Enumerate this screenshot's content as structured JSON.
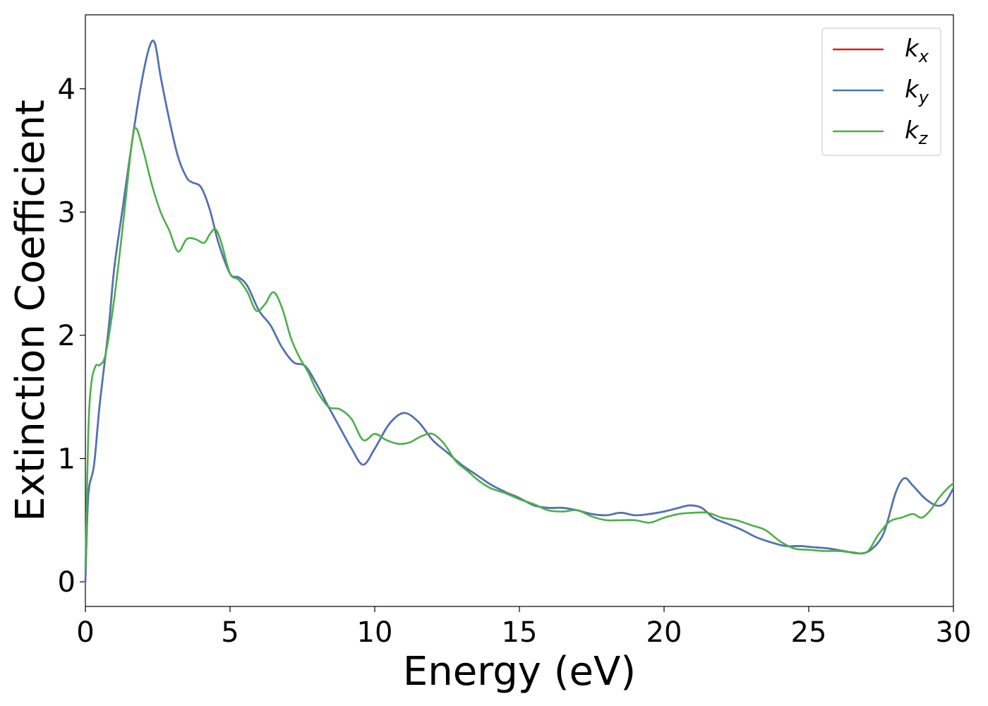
{
  "chart_data": {
    "type": "line",
    "xlabel": "Energy (eV)",
    "ylabel": "Extinction Coefficient",
    "xlim": [
      0,
      30
    ],
    "ylim": [
      -0.2,
      4.6
    ],
    "x_ticks": [
      0,
      5,
      10,
      15,
      20,
      25,
      30
    ],
    "y_ticks": [
      0,
      1,
      2,
      3,
      4
    ],
    "grid": false,
    "legend_position": "top-right",
    "series": [
      {
        "name": "k_x",
        "legend_base": "k",
        "legend_sub": "x",
        "color": "#e41a1c",
        "x": [
          0,
          0.1,
          0.3,
          0.5,
          0.8,
          1.0,
          1.3,
          1.6,
          1.9,
          2.2,
          2.4,
          2.6,
          2.9,
          3.2,
          3.5,
          3.7,
          4.0,
          4.3,
          4.6,
          5.0,
          5.3,
          5.6,
          6.0,
          6.4,
          6.8,
          7.2,
          7.6,
          8.0,
          8.4,
          8.8,
          9.2,
          9.6,
          10.0,
          10.5,
          11.0,
          11.5,
          12.0,
          12.5,
          13.0,
          13.5,
          14.0,
          14.5,
          15.0,
          15.5,
          16.0,
          16.5,
          17.0,
          17.5,
          18.0,
          18.5,
          19.0,
          19.5,
          20.0,
          20.5,
          20.9,
          21.3,
          21.7,
          22.2,
          22.7,
          23.2,
          23.7,
          24.2,
          24.7,
          25.2,
          25.7,
          26.2,
          26.8,
          27.2,
          27.6,
          28.0,
          28.3,
          28.6,
          29.0,
          29.4,
          29.7,
          30.0
        ],
        "y": [
          0.0,
          0.7,
          0.95,
          1.45,
          2.05,
          2.55,
          3.05,
          3.55,
          4.0,
          4.33,
          4.37,
          4.1,
          3.75,
          3.45,
          3.28,
          3.24,
          3.2,
          3.02,
          2.75,
          2.5,
          2.47,
          2.4,
          2.2,
          2.08,
          1.9,
          1.78,
          1.75,
          1.6,
          1.42,
          1.25,
          1.08,
          0.95,
          1.08,
          1.28,
          1.37,
          1.3,
          1.15,
          1.05,
          0.95,
          0.87,
          0.79,
          0.73,
          0.68,
          0.62,
          0.6,
          0.6,
          0.58,
          0.55,
          0.54,
          0.56,
          0.54,
          0.55,
          0.57,
          0.6,
          0.62,
          0.6,
          0.52,
          0.47,
          0.42,
          0.36,
          0.32,
          0.29,
          0.29,
          0.28,
          0.27,
          0.25,
          0.23,
          0.27,
          0.4,
          0.72,
          0.84,
          0.78,
          0.68,
          0.62,
          0.64,
          0.76
        ]
      },
      {
        "name": "k_y",
        "legend_base": "k",
        "legend_sub": "y",
        "color": "#4a76b8",
        "x": [
          0,
          0.1,
          0.3,
          0.5,
          0.8,
          1.0,
          1.3,
          1.6,
          1.9,
          2.2,
          2.4,
          2.6,
          2.9,
          3.2,
          3.5,
          3.7,
          4.0,
          4.3,
          4.6,
          5.0,
          5.3,
          5.6,
          6.0,
          6.4,
          6.8,
          7.2,
          7.6,
          8.0,
          8.4,
          8.8,
          9.2,
          9.6,
          10.0,
          10.5,
          11.0,
          11.5,
          12.0,
          12.5,
          13.0,
          13.5,
          14.0,
          14.5,
          15.0,
          15.5,
          16.0,
          16.5,
          17.0,
          17.5,
          18.0,
          18.5,
          19.0,
          19.5,
          20.0,
          20.5,
          20.9,
          21.3,
          21.7,
          22.2,
          22.7,
          23.2,
          23.7,
          24.2,
          24.7,
          25.2,
          25.7,
          26.2,
          26.8,
          27.2,
          27.6,
          28.0,
          28.3,
          28.6,
          29.0,
          29.4,
          29.7,
          30.0
        ],
        "y": [
          0.0,
          0.7,
          0.95,
          1.45,
          2.05,
          2.55,
          3.05,
          3.55,
          4.0,
          4.33,
          4.37,
          4.1,
          3.75,
          3.45,
          3.28,
          3.24,
          3.2,
          3.02,
          2.75,
          2.5,
          2.47,
          2.4,
          2.2,
          2.08,
          1.9,
          1.78,
          1.75,
          1.6,
          1.42,
          1.25,
          1.08,
          0.95,
          1.08,
          1.28,
          1.37,
          1.3,
          1.15,
          1.05,
          0.95,
          0.87,
          0.79,
          0.73,
          0.68,
          0.62,
          0.6,
          0.6,
          0.58,
          0.55,
          0.54,
          0.56,
          0.54,
          0.55,
          0.57,
          0.6,
          0.62,
          0.6,
          0.52,
          0.47,
          0.42,
          0.36,
          0.32,
          0.29,
          0.29,
          0.28,
          0.27,
          0.25,
          0.23,
          0.27,
          0.4,
          0.72,
          0.84,
          0.78,
          0.68,
          0.62,
          0.64,
          0.76
        ]
      },
      {
        "name": "k_z",
        "legend_base": "k",
        "legend_sub": "z",
        "color": "#4daf4a",
        "x": [
          0,
          0.1,
          0.2,
          0.35,
          0.5,
          0.7,
          1.0,
          1.3,
          1.6,
          1.75,
          2.0,
          2.3,
          2.6,
          2.9,
          3.2,
          3.5,
          3.8,
          4.1,
          4.3,
          4.5,
          4.7,
          5.0,
          5.3,
          5.6,
          5.9,
          6.2,
          6.5,
          6.8,
          7.1,
          7.4,
          7.7,
          8.0,
          8.4,
          8.8,
          9.2,
          9.6,
          10.0,
          10.4,
          10.8,
          11.2,
          11.6,
          12.0,
          12.4,
          12.8,
          13.2,
          13.6,
          14.0,
          14.5,
          15.0,
          15.5,
          16.0,
          16.5,
          17.0,
          17.5,
          18.0,
          18.5,
          19.0,
          19.5,
          20.0,
          20.5,
          21.0,
          21.5,
          22.0,
          22.5,
          23.0,
          23.5,
          24.0,
          24.5,
          25.0,
          25.5,
          26.0,
          26.5,
          27.0,
          27.4,
          27.8,
          28.2,
          28.6,
          28.9,
          29.2,
          29.5,
          29.8,
          30.0
        ],
        "y": [
          0.1,
          1.2,
          1.6,
          1.75,
          1.76,
          1.85,
          2.3,
          2.9,
          3.55,
          3.68,
          3.5,
          3.22,
          3.0,
          2.85,
          2.68,
          2.78,
          2.78,
          2.75,
          2.82,
          2.86,
          2.75,
          2.5,
          2.45,
          2.35,
          2.2,
          2.25,
          2.35,
          2.22,
          1.98,
          1.82,
          1.7,
          1.55,
          1.42,
          1.4,
          1.32,
          1.15,
          1.2,
          1.15,
          1.12,
          1.13,
          1.18,
          1.2,
          1.12,
          0.98,
          0.9,
          0.82,
          0.76,
          0.72,
          0.67,
          0.63,
          0.58,
          0.57,
          0.58,
          0.53,
          0.5,
          0.5,
          0.5,
          0.48,
          0.52,
          0.55,
          0.56,
          0.56,
          0.52,
          0.5,
          0.46,
          0.42,
          0.33,
          0.27,
          0.26,
          0.25,
          0.25,
          0.24,
          0.24,
          0.38,
          0.49,
          0.52,
          0.55,
          0.52,
          0.58,
          0.68,
          0.76,
          0.8
        ]
      }
    ]
  }
}
